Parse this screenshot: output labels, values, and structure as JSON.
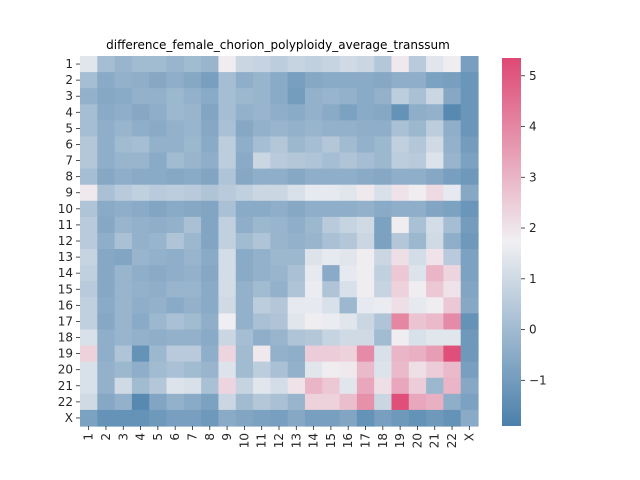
{
  "chart_data": {
    "type": "heatmap",
    "title": "difference_female_chorion_polyploidy_average_transsum",
    "xlabel": "",
    "ylabel": "",
    "categories": [
      "1",
      "2",
      "3",
      "4",
      "5",
      "6",
      "7",
      "8",
      "9",
      "10",
      "11",
      "12",
      "13",
      "14",
      "15",
      "16",
      "17",
      "18",
      "19",
      "20",
      "21",
      "22",
      "X"
    ],
    "colorbar": {
      "vmin": -1.9,
      "vmax": 5.35,
      "ticks": [
        -1,
        0,
        1,
        2,
        3,
        4,
        5
      ],
      "colors": {
        "low": "#4a80ab",
        "mid": "#f0f0f3",
        "high": "#de4874"
      }
    },
    "values": [
      [
        1.4,
        0.1,
        -0.2,
        0.0,
        0.0,
        -0.2,
        0.0,
        -0.2,
        1.8,
        0.9,
        0.8,
        0.6,
        0.8,
        0.7,
        0.8,
        1.0,
        0.9,
        0.4,
        1.9,
        0.5,
        1.4,
        1.8,
        -0.9
      ],
      [
        0.1,
        -0.5,
        -0.3,
        -0.4,
        -0.6,
        -0.4,
        -0.6,
        -0.9,
        0.1,
        -0.4,
        -0.2,
        -0.5,
        -0.9,
        -0.6,
        -0.5,
        -0.5,
        -0.5,
        -0.6,
        -0.4,
        -0.4,
        -0.8,
        -0.9,
        -1.2
      ],
      [
        -0.3,
        -0.6,
        -0.5,
        -0.3,
        -0.3,
        -0.1,
        -0.3,
        -0.5,
        0.1,
        -0.1,
        -0.2,
        -0.5,
        -1.0,
        -0.3,
        -0.2,
        -0.3,
        -0.5,
        -0.3,
        0.6,
        0.2,
        0.9,
        -0.6,
        -1.2
      ],
      [
        0.1,
        -0.5,
        -0.4,
        -0.6,
        -0.4,
        -0.1,
        -0.2,
        -0.7,
        0.1,
        -0.3,
        -0.2,
        -0.4,
        -0.5,
        -0.3,
        -0.5,
        -0.8,
        -0.5,
        -0.6,
        -1.3,
        -0.4,
        -0.3,
        -1.6,
        -1.2
      ],
      [
        0.1,
        -0.4,
        -0.2,
        -0.4,
        -0.5,
        -0.3,
        -0.2,
        -0.6,
        0.2,
        -0.6,
        -0.3,
        -0.2,
        -0.3,
        -0.2,
        -0.3,
        -0.3,
        -0.4,
        -0.4,
        0.2,
        -0.1,
        0.6,
        -0.4,
        -1.2
      ],
      [
        0.4,
        -0.4,
        0.0,
        0.1,
        -0.3,
        -0.3,
        -0.1,
        -0.5,
        0.6,
        -0.4,
        0.1,
        0.4,
        -0.1,
        0.1,
        0.4,
        0.0,
        -0.3,
        -0.1,
        0.7,
        0.4,
        1.0,
        -0.3,
        -1.0
      ],
      [
        0.4,
        -0.4,
        -0.2,
        -0.2,
        -0.5,
        0.0,
        -0.2,
        -0.4,
        0.6,
        -0.5,
        0.9,
        0.5,
        0.4,
        0.3,
        0.1,
        0.3,
        0.1,
        -0.1,
        0.6,
        0.5,
        1.3,
        -0.2,
        -0.8
      ],
      [
        0.1,
        -0.6,
        -0.4,
        -0.5,
        -0.5,
        -0.6,
        -0.5,
        -0.7,
        0.3,
        -0.6,
        -0.4,
        -0.4,
        -0.6,
        -0.4,
        -0.4,
        -0.4,
        -0.5,
        -0.6,
        -0.4,
        -0.4,
        -0.6,
        -0.9,
        -1.1
      ],
      [
        1.9,
        0.2,
        0.5,
        0.7,
        0.5,
        0.6,
        0.5,
        0.3,
        0.5,
        0.7,
        0.9,
        0.9,
        1.2,
        1.5,
        1.5,
        1.4,
        1.9,
        1.2,
        2.0,
        1.8,
        2.2,
        1.5,
        -0.6
      ],
      [
        0.3,
        -0.5,
        -0.4,
        -0.5,
        -0.7,
        -0.5,
        -0.6,
        -0.7,
        0.2,
        -0.5,
        -0.5,
        -0.4,
        -0.6,
        -0.4,
        -0.4,
        -0.4,
        -0.3,
        -0.5,
        -0.4,
        -0.4,
        -0.7,
        -0.8,
        -1.2
      ],
      [
        0.5,
        -0.6,
        -0.2,
        -0.3,
        -0.4,
        -0.3,
        0.2,
        -0.7,
        0.7,
        -0.4,
        -0.1,
        -0.2,
        -0.4,
        -0.1,
        0.5,
        0.8,
        1.0,
        -0.8,
        1.8,
        0.2,
        1.1,
        0.1,
        -1.0
      ],
      [
        0.5,
        -0.4,
        0.2,
        -0.3,
        -0.2,
        0.3,
        -0.1,
        -0.7,
        0.7,
        0.0,
        0.3,
        -0.2,
        -0.3,
        -0.2,
        0.2,
        0.4,
        0.9,
        -0.8,
        0.4,
        -0.1,
        1.0,
        -0.4,
        -1.1
      ],
      [
        0.8,
        -0.6,
        -0.7,
        -0.2,
        -0.3,
        -0.4,
        -0.2,
        -0.5,
        1.1,
        -0.5,
        -0.3,
        -0.1,
        -0.1,
        1.3,
        1.5,
        1.4,
        1.8,
        0.9,
        2.1,
        1.1,
        2.0,
        0.5,
        -0.8
      ],
      [
        0.7,
        -0.6,
        -0.2,
        -0.4,
        -0.5,
        -0.4,
        -0.3,
        -0.6,
        1.1,
        -0.5,
        -0.3,
        -0.2,
        0.2,
        1.5,
        -0.5,
        1.5,
        1.8,
        0.7,
        2.6,
        1.3,
        3.0,
        2.3,
        -0.8
      ],
      [
        0.5,
        -0.6,
        -0.2,
        -0.3,
        -0.4,
        -0.2,
        -0.2,
        -0.5,
        1.1,
        -0.3,
        0.0,
        -0.3,
        0.3,
        1.6,
        0.3,
        1.2,
        1.8,
        0.8,
        2.4,
        1.8,
        2.6,
        2.0,
        -0.7
      ],
      [
        0.7,
        -0.5,
        -0.2,
        -0.4,
        -0.3,
        -0.5,
        -0.3,
        -0.5,
        1.0,
        -0.3,
        0.6,
        0.4,
        1.5,
        1.5,
        1.2,
        -0.1,
        1.5,
        1.6,
        2.1,
        1.5,
        1.8,
        2.6,
        -0.6
      ],
      [
        0.7,
        -0.6,
        -0.2,
        -0.5,
        -0.1,
        0.2,
        0.0,
        -0.4,
        1.7,
        -0.3,
        0.2,
        0.3,
        1.4,
        1.8,
        1.6,
        1.4,
        0.9,
        0.3,
        4.0,
        2.7,
        2.9,
        3.9,
        -1.3
      ],
      [
        1.2,
        -0.4,
        -0.2,
        -0.3,
        -0.4,
        -0.3,
        -0.3,
        -0.5,
        0.9,
        0.1,
        -0.4,
        -0.2,
        0.3,
        0.4,
        0.8,
        1.0,
        1.0,
        0.0,
        1.8,
        1.2,
        1.4,
        1.4,
        -1.1
      ],
      [
        2.4,
        -0.4,
        0.3,
        -1.3,
        -0.1,
        0.5,
        0.5,
        -0.4,
        2.3,
        0.0,
        1.9,
        -0.3,
        -0.4,
        2.5,
        2.5,
        2.4,
        3.9,
        1.2,
        3.0,
        3.1,
        3.5,
        5.2,
        -1.1
      ],
      [
        1.2,
        -0.3,
        -0.1,
        -0.4,
        0.0,
        0.2,
        0.0,
        -0.2,
        1.3,
        0.0,
        0.6,
        0.2,
        -0.3,
        1.4,
        1.8,
        1.9,
        2.9,
        1.3,
        2.9,
        2.1,
        2.5,
        2.9,
        -0.9
      ],
      [
        1.2,
        -0.3,
        1.0,
        0.0,
        0.4,
        1.3,
        1.2,
        0.2,
        2.3,
        0.8,
        1.4,
        1.1,
        2.0,
        3.0,
        2.6,
        1.4,
        3.3,
        2.1,
        3.3,
        2.5,
        -0.1,
        3.0,
        -0.6
      ],
      [
        1.0,
        -0.6,
        -0.3,
        -1.6,
        -0.7,
        -0.3,
        -0.5,
        -0.8,
        0.9,
        0.0,
        0.4,
        0.2,
        -0.2,
        2.4,
        2.4,
        2.8,
        3.8,
        0.9,
        5.2,
        3.3,
        3.1,
        -0.4,
        -0.8
      ],
      [
        -0.8,
        -1.3,
        -1.3,
        -1.3,
        -1.1,
        -0.9,
        -0.9,
        -1.1,
        -0.5,
        -0.7,
        -0.8,
        -0.9,
        -0.6,
        -0.9,
        -0.9,
        -0.7,
        -1.3,
        -0.9,
        -1.1,
        -1.3,
        -1.1,
        -1.3,
        -0.5
      ]
    ]
  }
}
